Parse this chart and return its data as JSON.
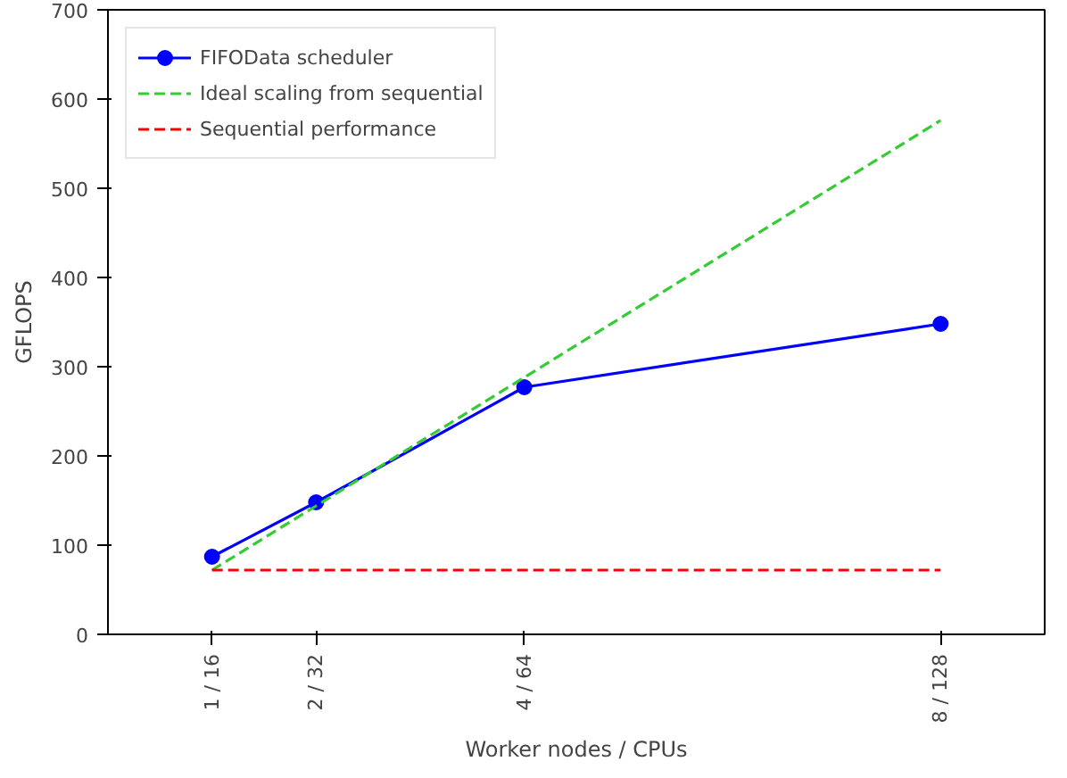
{
  "chart_data": {
    "type": "line",
    "xlabel": "Worker nodes / CPUs",
    "ylabel": "GFLOPS",
    "categories": [
      "1 / 16",
      "2 / 32",
      null,
      "4 / 64",
      null,
      null,
      null,
      "8 / 128"
    ],
    "ylim": [
      0,
      700
    ],
    "yticks": [
      0,
      100,
      200,
      300,
      400,
      500,
      600,
      700
    ],
    "grid": false,
    "legend": "top left",
    "series": [
      {
        "name": "FIFOData scheduler",
        "color": "#0000ff",
        "x": [
          "1 / 16",
          "2 / 32",
          "4 / 64",
          "8 / 128"
        ],
        "values": [
          87,
          148,
          277,
          348
        ],
        "marker": "circle",
        "line_style": "solid"
      },
      {
        "name": "Ideal scaling from sequential",
        "color": "#33cc33",
        "x": [
          "1 / 16",
          "2 / 32",
          "4 / 64",
          "8 / 128"
        ],
        "values": [
          72,
          144,
          288,
          576
        ],
        "marker": "none",
        "line_style": "dashed"
      },
      {
        "name": "Sequential performance",
        "color": "#ff0000",
        "x": [
          "1 / 16",
          "2 / 32",
          "4 / 64",
          "8 / 128"
        ],
        "values": [
          72,
          72,
          72,
          72
        ],
        "marker": "none",
        "line_style": "dashed"
      }
    ]
  }
}
